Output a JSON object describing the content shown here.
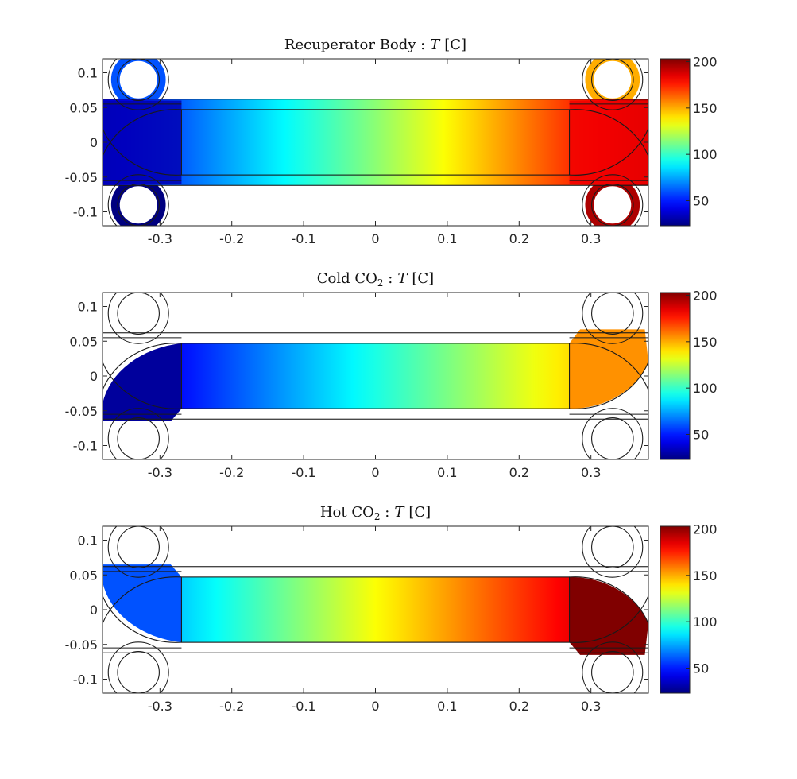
{
  "panels": [
    {
      "title_main": "Recuperator Body :",
      "title_var": "T",
      "title_unit": "[C]",
      "mode": "body"
    },
    {
      "title_main": "Cold CO",
      "title_sub": "2",
      "title_sep": " :",
      "title_var": "T",
      "title_unit": "[C]",
      "mode": "cold"
    },
    {
      "title_main": "Hot CO",
      "title_sub": "2",
      "title_sep": " :",
      "title_var": "T",
      "title_unit": "[C]",
      "mode": "hot"
    }
  ],
  "chart_data": [
    {
      "type": "heatmap",
      "title": "Recuperator Body : T [C]",
      "xlim": [
        -0.38,
        0.38
      ],
      "ylim": [
        -0.12,
        0.12
      ],
      "xticks": [
        -0.3,
        -0.2,
        -0.1,
        0,
        0.1,
        0.2,
        0.3
      ],
      "xtick_labels": [
        "-0.3",
        "-0.2",
        "-0.1",
        "0",
        "0.1",
        "0.2",
        "0.3"
      ],
      "yticks": [
        0.1,
        0.05,
        0,
        -0.05,
        -0.1
      ],
      "ytick_labels": [
        "0.1",
        "0.05",
        "0",
        "-0.05",
        "-0.1"
      ],
      "colorbar": {
        "clim": [
          23,
          203
        ],
        "ticks": [
          200,
          150,
          100,
          50
        ],
        "tick_labels": [
          "200",
          "150",
          "100",
          "50"
        ],
        "colormap": "jet"
      },
      "temperature_field": {
        "left_end": 40,
        "center": 115,
        "right_end": 195
      }
    },
    {
      "type": "heatmap",
      "title": "Cold CO2 : T [C]",
      "xlim": [
        -0.38,
        0.38
      ],
      "ylim": [
        -0.12,
        0.12
      ],
      "xticks": [
        -0.3,
        -0.2,
        -0.1,
        0,
        0.1,
        0.2,
        0.3
      ],
      "xtick_labels": [
        "-0.3",
        "-0.2",
        "-0.1",
        "0",
        "0.1",
        "0.2",
        "0.3"
      ],
      "yticks": [
        0.1,
        0.05,
        0,
        -0.05,
        -0.1
      ],
      "ytick_labels": [
        "0.1",
        "0.05",
        "0",
        "-0.05",
        "-0.1"
      ],
      "colorbar": {
        "clim": [
          23,
          203
        ],
        "ticks": [
          200,
          150,
          100,
          50
        ],
        "tick_labels": [
          "200",
          "150",
          "100",
          "50"
        ],
        "colormap": "jet"
      },
      "temperature_field": {
        "left_end": 28,
        "center": 95,
        "right_end": 160
      }
    },
    {
      "type": "heatmap",
      "title": "Hot CO2 : T [C]",
      "xlim": [
        -0.38,
        0.38
      ],
      "ylim": [
        -0.12,
        0.12
      ],
      "xticks": [
        -0.3,
        -0.2,
        -0.1,
        0,
        0.1,
        0.2,
        0.3
      ],
      "xtick_labels": [
        "-0.3",
        "-0.2",
        "-0.1",
        "0",
        "0.1",
        "0.2",
        "0.3"
      ],
      "yticks": [
        0.1,
        0.05,
        0,
        -0.05,
        -0.1
      ],
      "ytick_labels": [
        "0.1",
        "0.05",
        "0",
        "-0.05",
        "-0.1"
      ],
      "colorbar": {
        "clim": [
          23,
          203
        ],
        "ticks": [
          200,
          150,
          100,
          50
        ],
        "tick_labels": [
          "200",
          "150",
          "100",
          "50"
        ],
        "colormap": "jet"
      },
      "temperature_field": {
        "left_end": 60,
        "center": 135,
        "right_end": 203
      }
    }
  ]
}
